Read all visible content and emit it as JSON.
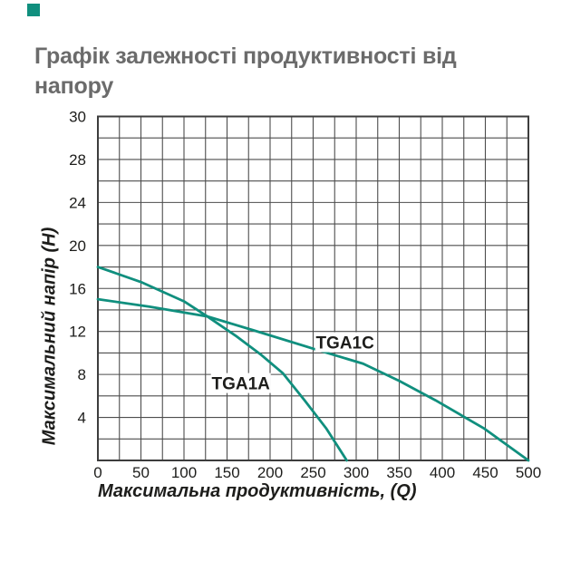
{
  "page": {
    "background": "#ffffff",
    "accent_color": "#108F7E"
  },
  "header": {
    "title_lines": [
      "Графік залежності продуктивності від",
      "напору"
    ],
    "title_color": "#6b6b6b"
  },
  "chart_data": {
    "type": "line",
    "title": "Графік залежності продуктивності від напору",
    "x_axis": {
      "label": "Максимальна продуктивність, (Q)",
      "range": [
        0,
        500
      ],
      "ticks": [
        0,
        50,
        100,
        150,
        200,
        250,
        300,
        350,
        400,
        450,
        500
      ],
      "gridline_step": 25
    },
    "y_axis": {
      "label": "Максимальний напір (Н)",
      "range": [
        0,
        30
      ],
      "ticks": [
        30,
        28,
        24,
        20,
        16,
        12,
        8,
        4
      ],
      "gridline_step": 2
    },
    "grid": true,
    "legend_position": "inline-labels",
    "line_color": "#108F7E",
    "grid_color": "#4d4d4d",
    "border_color": "#3d3d3d",
    "text_color": "#1d1d1b",
    "series": [
      {
        "name": "TGA1A",
        "points": [
          [
            0,
            18
          ],
          [
            50,
            16.6
          ],
          [
            100,
            14.8
          ],
          [
            127,
            13.4
          ],
          [
            160,
            11.6
          ],
          [
            190,
            9.8
          ],
          [
            215,
            8.1
          ],
          [
            240,
            5.6
          ],
          [
            265,
            3.0
          ],
          [
            289,
            0
          ]
        ],
        "label_pos": [
          166,
          7.2
        ]
      },
      {
        "name": "TGA1C",
        "points": [
          [
            0,
            15
          ],
          [
            60,
            14.3
          ],
          [
            127,
            13.4
          ],
          [
            181,
            12.1
          ],
          [
            250,
            10.4
          ],
          [
            308,
            9.0
          ],
          [
            350,
            7.4
          ],
          [
            392,
            5.6
          ],
          [
            448,
            3.0
          ],
          [
            500,
            0
          ]
        ],
        "label_pos": [
          287,
          11.0
        ]
      }
    ]
  }
}
